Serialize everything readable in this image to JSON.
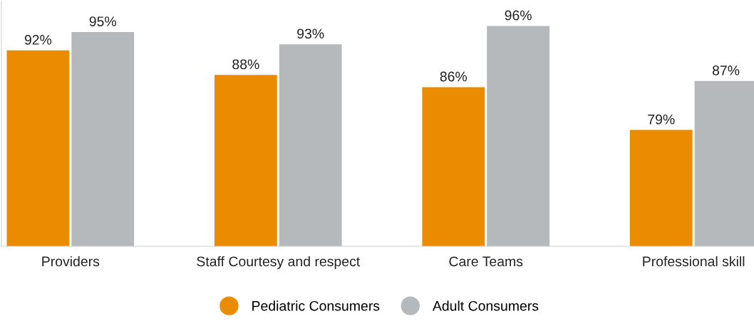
{
  "chart_data": {
    "type": "bar",
    "categories": [
      "Providers",
      "Staff Courtesy and respect",
      "Care Teams",
      "Professional skill"
    ],
    "series": [
      {
        "name": "Pediatric Consumers",
        "color": "#eb8c00",
        "values": [
          92,
          88,
          86,
          79
        ],
        "value_labels": [
          "92%",
          "88%",
          "86%",
          "79%"
        ]
      },
      {
        "name": "Adult Consumers",
        "color": "#b5b9bc",
        "values": [
          95,
          93,
          96,
          87
        ],
        "value_labels": [
          "95%",
          "93%",
          "96%",
          "87%"
        ]
      }
    ],
    "ylim": [
      60,
      100
    ],
    "legend": "bottom",
    "grid": false
  }
}
